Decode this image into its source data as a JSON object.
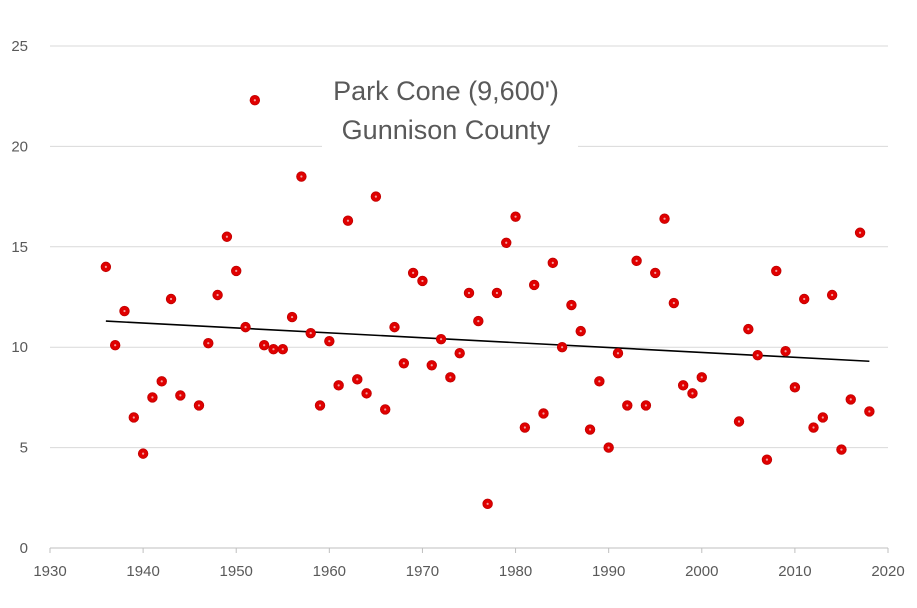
{
  "chart_data": {
    "type": "scatter",
    "title_lines": [
      "Park Cone (9,600')",
      "Gunnison County"
    ],
    "xlabel": "",
    "ylabel": "",
    "xlim": [
      1930,
      2020
    ],
    "ylim": [
      0,
      25
    ],
    "xticks": [
      1930,
      1940,
      1950,
      1960,
      1970,
      1980,
      1990,
      2000,
      2010,
      2020
    ],
    "yticks": [
      0,
      5,
      10,
      15,
      20,
      25
    ],
    "grid": "horizontal",
    "legend": "none",
    "colors": {
      "point": "#e00000",
      "point_center": "#f2a0a0",
      "trendline": "#000000",
      "grid": "#d9d9d9",
      "axis": "#bfbfbf",
      "text": "#595959"
    },
    "series": [
      {
        "x": [
          1936,
          1937,
          1938,
          1939,
          1940,
          1941,
          1942,
          1943,
          1944,
          1946,
          1947,
          1948,
          1949,
          1950,
          1951,
          1952,
          1953,
          1954,
          1955,
          1956,
          1957,
          1958,
          1959,
          1960,
          1961,
          1962,
          1963,
          1964,
          1965,
          1966,
          1967,
          1968,
          1969,
          1970,
          1971,
          1972,
          1973,
          1974,
          1975,
          1976,
          1977,
          1978,
          1979,
          1980,
          1981,
          1982,
          1983,
          1984,
          1985,
          1986,
          1987,
          1988,
          1989,
          1990,
          1991,
          1992,
          1993,
          1994,
          1995,
          1996,
          1997,
          1998,
          1999,
          2000,
          2004,
          2005,
          2006,
          2007,
          2008,
          2009,
          2010,
          2011,
          2012,
          2013,
          2014,
          2015,
          2016,
          2017,
          2018
        ],
        "y": [
          14.0,
          10.1,
          11.8,
          6.5,
          4.7,
          7.5,
          8.3,
          12.4,
          7.6,
          7.1,
          10.2,
          12.6,
          15.5,
          13.8,
          11.0,
          22.3,
          10.1,
          9.9,
          9.9,
          11.5,
          18.5,
          10.7,
          7.1,
          10.3,
          8.1,
          16.3,
          8.4,
          7.7,
          17.5,
          6.9,
          11.0,
          9.2,
          13.7,
          13.3,
          9.1,
          10.4,
          8.5,
          9.7,
          12.7,
          11.3,
          2.2,
          12.7,
          15.2,
          16.5,
          6.0,
          13.1,
          6.7,
          14.2,
          10.0,
          12.1,
          10.8,
          5.9,
          8.3,
          5.0,
          9.7,
          7.1,
          14.3,
          7.1,
          13.7,
          16.4,
          12.2,
          8.1,
          7.7,
          8.5,
          6.3,
          10.9,
          9.6,
          4.4,
          13.8,
          9.8,
          8.0,
          12.4,
          6.0,
          6.5,
          12.6,
          4.9,
          7.4,
          15.7,
          6.8
        ]
      }
    ],
    "trendline": {
      "x": [
        1936,
        2018
      ],
      "y": [
        11.3,
        9.3
      ]
    }
  }
}
